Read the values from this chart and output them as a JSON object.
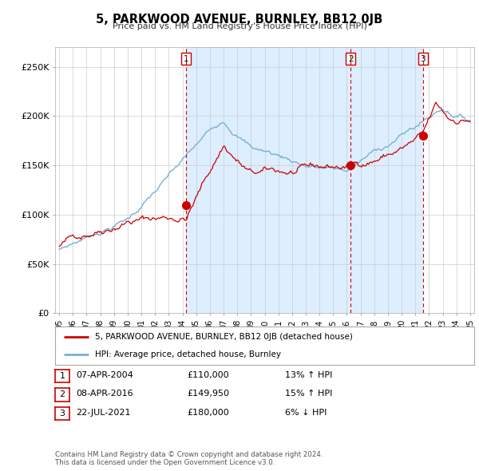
{
  "title": "5, PARKWOOD AVENUE, BURNLEY, BB12 0JB",
  "subtitle": "Price paid vs. HM Land Registry's House Price Index (HPI)",
  "ylabel_ticks": [
    "£0",
    "£50K",
    "£100K",
    "£150K",
    "£200K",
    "£250K"
  ],
  "ytick_values": [
    0,
    50000,
    100000,
    150000,
    200000,
    250000
  ],
  "ylim": [
    0,
    270000
  ],
  "xlim_start": 1994.7,
  "xlim_end": 2025.3,
  "red_line_color": "#cc0000",
  "blue_line_color": "#7ab0d4",
  "shade_color": "#ddeeff",
  "vline_color": "#cc0000",
  "sale_dates": [
    2004.27,
    2016.27,
    2021.55
  ],
  "sale_prices": [
    110000,
    149950,
    180000
  ],
  "sale_labels": [
    "1",
    "2",
    "3"
  ],
  "legend_line1": "5, PARKWOOD AVENUE, BURNLEY, BB12 0JB (detached house)",
  "legend_line2": "HPI: Average price, detached house, Burnley",
  "table_rows": [
    [
      "1",
      "07-APR-2004",
      "£110,000",
      "13% ↑ HPI"
    ],
    [
      "2",
      "08-APR-2016",
      "£149,950",
      "15% ↑ HPI"
    ],
    [
      "3",
      "22-JUL-2021",
      "£180,000",
      "6% ↓ HPI"
    ]
  ],
  "footnote": "Contains HM Land Registry data © Crown copyright and database right 2024.\nThis data is licensed under the Open Government Licence v3.0.",
  "background_color": "#ffffff",
  "grid_color": "#cccccc",
  "figwidth": 6.0,
  "figheight": 5.9,
  "dpi": 100
}
